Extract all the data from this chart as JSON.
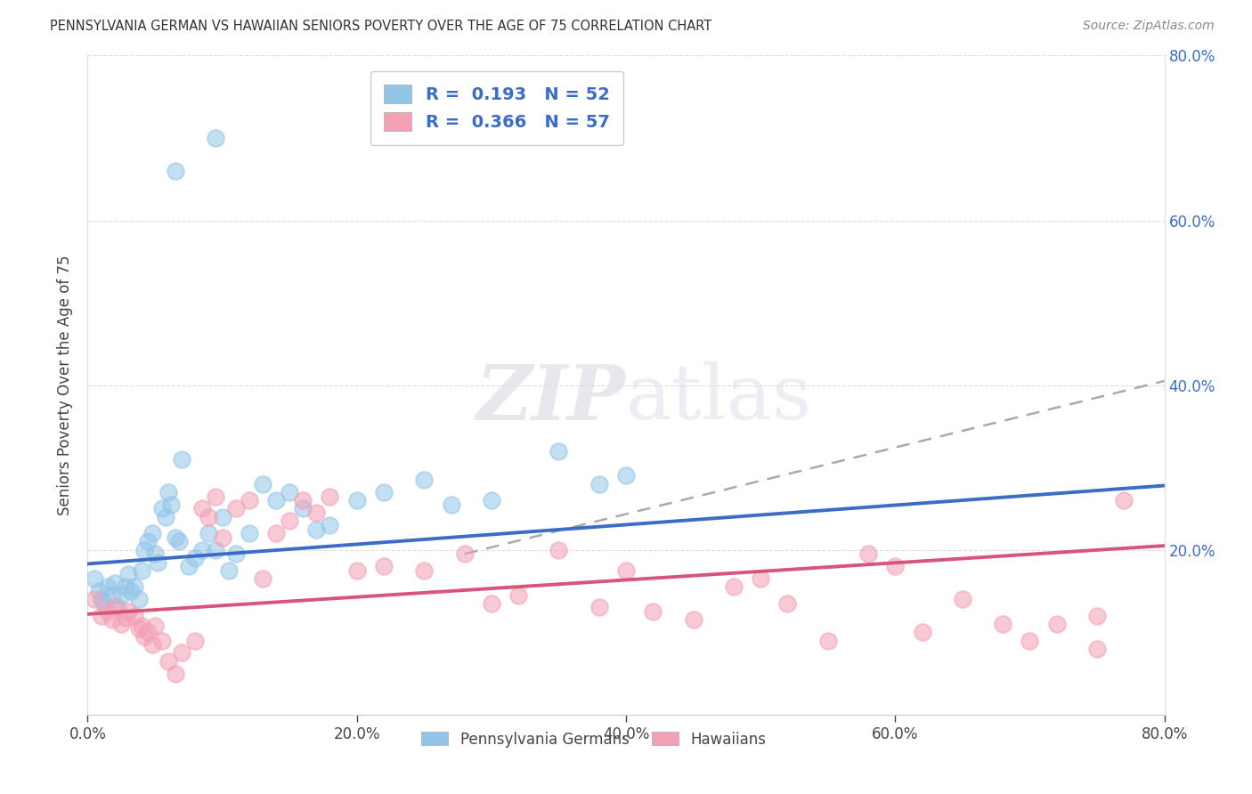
{
  "title": "PENNSYLVANIA GERMAN VS HAWAIIAN SENIORS POVERTY OVER THE AGE OF 75 CORRELATION CHART",
  "source": "Source: ZipAtlas.com",
  "ylabel": "Seniors Poverty Over the Age of 75",
  "r_pa": 0.193,
  "n_pa": 52,
  "r_hi": 0.366,
  "n_hi": 57,
  "pa_color": "#93C5E8",
  "hi_color": "#F4A0B5",
  "pa_line_color": "#3B6CC7",
  "hi_line_color": "#D9547A",
  "trend_line_color": "#AAAAAA",
  "background_color": "#ffffff",
  "axis_color": "#3B6CC7",
  "xlim": [
    0.0,
    0.8
  ],
  "ylim": [
    0.0,
    0.8
  ],
  "xticks": [
    0.0,
    0.2,
    0.4,
    0.6,
    0.8
  ],
  "yticks": [
    0.0,
    0.2,
    0.4,
    0.6,
    0.8
  ],
  "pa_x": [
    0.005,
    0.008,
    0.01,
    0.012,
    0.015,
    0.018,
    0.02,
    0.022,
    0.025,
    0.028,
    0.03,
    0.032,
    0.035,
    0.038,
    0.04,
    0.042,
    0.045,
    0.048,
    0.05,
    0.052,
    0.055,
    0.058,
    0.06,
    0.062,
    0.065,
    0.068,
    0.07,
    0.075,
    0.08,
    0.085,
    0.09,
    0.095,
    0.1,
    0.105,
    0.11,
    0.12,
    0.13,
    0.14,
    0.15,
    0.16,
    0.17,
    0.18,
    0.2,
    0.22,
    0.25,
    0.27,
    0.3,
    0.35,
    0.38,
    0.4,
    0.065,
    0.095
  ],
  "pa_y": [
    0.165,
    0.15,
    0.14,
    0.135,
    0.155,
    0.145,
    0.16,
    0.13,
    0.145,
    0.155,
    0.17,
    0.15,
    0.155,
    0.14,
    0.175,
    0.2,
    0.21,
    0.22,
    0.195,
    0.185,
    0.25,
    0.24,
    0.27,
    0.255,
    0.215,
    0.21,
    0.31,
    0.18,
    0.19,
    0.2,
    0.22,
    0.2,
    0.24,
    0.175,
    0.195,
    0.22,
    0.28,
    0.26,
    0.27,
    0.25,
    0.225,
    0.23,
    0.26,
    0.27,
    0.285,
    0.255,
    0.26,
    0.32,
    0.28,
    0.29,
    0.66,
    0.7
  ],
  "hi_x": [
    0.005,
    0.01,
    0.015,
    0.018,
    0.02,
    0.025,
    0.028,
    0.03,
    0.035,
    0.038,
    0.04,
    0.042,
    0.045,
    0.048,
    0.05,
    0.055,
    0.06,
    0.065,
    0.07,
    0.08,
    0.085,
    0.09,
    0.095,
    0.1,
    0.11,
    0.12,
    0.13,
    0.14,
    0.15,
    0.16,
    0.17,
    0.18,
    0.2,
    0.22,
    0.25,
    0.28,
    0.3,
    0.32,
    0.35,
    0.38,
    0.4,
    0.42,
    0.45,
    0.48,
    0.5,
    0.52,
    0.55,
    0.58,
    0.6,
    0.62,
    0.65,
    0.68,
    0.7,
    0.72,
    0.75,
    0.77,
    0.75
  ],
  "hi_y": [
    0.14,
    0.12,
    0.125,
    0.115,
    0.13,
    0.11,
    0.118,
    0.125,
    0.12,
    0.105,
    0.108,
    0.095,
    0.1,
    0.085,
    0.108,
    0.09,
    0.065,
    0.05,
    0.075,
    0.09,
    0.25,
    0.24,
    0.265,
    0.215,
    0.25,
    0.26,
    0.165,
    0.22,
    0.235,
    0.26,
    0.245,
    0.265,
    0.175,
    0.18,
    0.175,
    0.195,
    0.135,
    0.145,
    0.2,
    0.13,
    0.175,
    0.125,
    0.115,
    0.155,
    0.165,
    0.135,
    0.09,
    0.195,
    0.18,
    0.1,
    0.14,
    0.11,
    0.09,
    0.11,
    0.08,
    0.26,
    0.12
  ],
  "pa_line_start_y": 0.183,
  "pa_line_end_y": 0.278,
  "hi_line_start_y": 0.122,
  "hi_line_end_y": 0.205,
  "dash_line_x": [
    0.28,
    0.8
  ],
  "dash_line_y": [
    0.195,
    0.405
  ]
}
